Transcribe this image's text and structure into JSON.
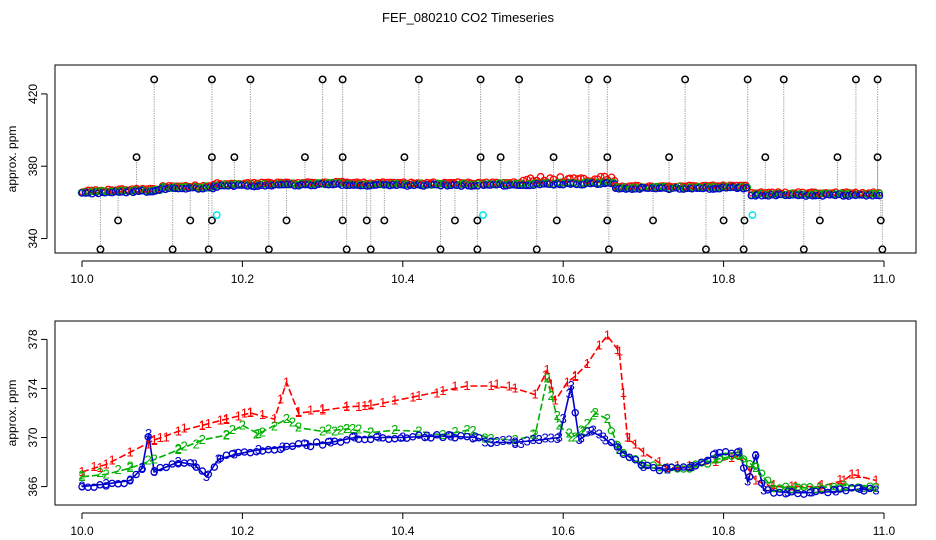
{
  "title": "FEF_080210  CO2 Timeseries",
  "colors": {
    "raw": "#000000",
    "s1": "#ff0000",
    "s2": "#00b000",
    "s3": "#0000cc",
    "cal": "#00e5ee",
    "drop": "#999999"
  },
  "chart_data": [
    {
      "type": "scatter",
      "ylabel": "approx. ppm",
      "xlim": [
        10.0,
        11.0
      ],
      "ylim": [
        332,
        436
      ],
      "x_ticks": [
        "10.0",
        "10.2",
        "10.4",
        "10.6",
        "10.8",
        "11.0"
      ],
      "y_ticks": [
        "340",
        "380",
        "420"
      ],
      "series": [
        {
          "key": "baseline",
          "segments": [
            {
              "x0": 10.0,
              "x1": 10.1,
              "y0": 365.0,
              "y1": 366.5
            },
            {
              "x0": 10.1,
              "x1": 10.165,
              "y0": 367.5,
              "y1": 368.0
            },
            {
              "x0": 10.165,
              "x1": 10.33,
              "y0": 369.0,
              "y1": 370.0
            },
            {
              "x0": 10.33,
              "x1": 10.495,
              "y0": 369.5,
              "y1": 369.5
            },
            {
              "x0": 10.5,
              "x1": 10.665,
              "y0": 369.5,
              "y1": 370.5
            },
            {
              "x0": 10.665,
              "x1": 10.83,
              "y0": 367.5,
              "y1": 368.0
            },
            {
              "x0": 10.835,
              "x1": 10.995,
              "y0": 364.0,
              "y1": 364.0
            }
          ]
        },
        {
          "key": "spikes_high",
          "x": [
            10.09,
            10.162,
            10.21,
            10.3,
            10.325,
            10.42,
            10.497,
            10.545,
            10.632,
            10.655,
            10.752,
            10.83,
            10.875,
            10.965,
            10.992
          ],
          "y": [
            428,
            428,
            428,
            428,
            428,
            428,
            428,
            428,
            428,
            428,
            428,
            428,
            428,
            428,
            428
          ]
        },
        {
          "key": "spikes_mid",
          "x": [
            10.068,
            10.162,
            10.19,
            10.278,
            10.325,
            10.402,
            10.497,
            10.522,
            10.588,
            10.655,
            10.732,
            10.852,
            10.942,
            10.992
          ],
          "y": [
            385,
            385,
            385,
            385,
            385,
            385,
            385,
            385,
            385,
            385,
            385,
            385,
            385,
            385
          ]
        },
        {
          "key": "spikes_low",
          "x": [
            10.045,
            10.135,
            10.162,
            10.255,
            10.325,
            10.355,
            10.377,
            10.465,
            10.493,
            10.592,
            10.655,
            10.712,
            10.8,
            10.826,
            10.92,
            10.996
          ],
          "y": [
            350,
            350,
            350,
            350,
            350,
            350,
            350,
            350,
            350,
            350,
            350,
            350,
            350,
            350,
            350,
            350
          ]
        },
        {
          "key": "spikes_min",
          "x": [
            10.023,
            10.113,
            10.158,
            10.233,
            10.33,
            10.36,
            10.447,
            10.493,
            10.567,
            10.657,
            10.778,
            10.825,
            10.9,
            10.998
          ],
          "y": [
            334,
            334,
            334,
            334,
            334,
            334,
            334,
            334,
            334,
            334,
            334,
            334,
            334,
            334
          ]
        },
        {
          "key": "calibration",
          "x": [
            10.168,
            10.5,
            10.836
          ],
          "y": [
            353,
            353,
            353
          ]
        }
      ]
    },
    {
      "type": "line",
      "ylabel": "approx. ppm",
      "xlim": [
        10.0,
        11.0
      ],
      "ylim": [
        364.5,
        379.5
      ],
      "x_ticks": [
        "10.0",
        "10.2",
        "10.4",
        "10.6",
        "10.8",
        "11.0"
      ],
      "y_ticks": [
        "366",
        "370",
        "374",
        "378"
      ],
      "series": [
        {
          "key": "s1",
          "marker": "1",
          "x": [
            10.0,
            10.03,
            10.06,
            10.09,
            10.12,
            10.15,
            10.18,
            10.21,
            10.24,
            10.255,
            10.27,
            10.3,
            10.33,
            10.36,
            10.39,
            10.42,
            10.45,
            10.48,
            10.51,
            10.54,
            10.565,
            10.58,
            10.59,
            10.605,
            10.615,
            10.63,
            10.645,
            10.655,
            10.67,
            10.68,
            10.7,
            10.73,
            10.76,
            10.79,
            10.82,
            10.84,
            10.86,
            10.89,
            10.92,
            10.95,
            10.96,
            10.99
          ],
          "y": [
            367.2,
            367.8,
            368.8,
            369.8,
            370.5,
            371.0,
            371.5,
            372.0,
            371.5,
            374.5,
            372.0,
            372.2,
            372.5,
            372.6,
            373.0,
            373.4,
            373.8,
            374.2,
            374.2,
            374.0,
            373.5,
            375.5,
            373.0,
            374.5,
            375.0,
            376.0,
            377.5,
            378.3,
            377.0,
            370.0,
            368.8,
            367.5,
            367.6,
            368.0,
            368.5,
            366.5,
            366.0,
            366.0,
            366.0,
            366.5,
            367.0,
            366.5
          ]
        },
        {
          "key": "s2",
          "marker": "2",
          "x": [
            10.0,
            10.03,
            10.06,
            10.09,
            10.12,
            10.15,
            10.18,
            10.2,
            10.22,
            10.255,
            10.27,
            10.3,
            10.33,
            10.36,
            10.39,
            10.42,
            10.45,
            10.48,
            10.51,
            10.54,
            10.565,
            10.58,
            10.595,
            10.61,
            10.625,
            10.64,
            10.655,
            10.67,
            10.7,
            10.73,
            10.76,
            10.79,
            10.82,
            10.84,
            10.86,
            10.89,
            10.92,
            10.95,
            10.99
          ],
          "y": [
            366.8,
            367.0,
            367.5,
            368.2,
            369.0,
            369.8,
            370.2,
            371.0,
            370.3,
            371.5,
            370.8,
            370.5,
            370.7,
            370.4,
            370.6,
            370.5,
            370.2,
            370.6,
            369.9,
            369.8,
            370.2,
            374.8,
            371.0,
            370.0,
            370.5,
            372.0,
            371.5,
            369.0,
            367.8,
            367.4,
            367.6,
            368.2,
            368.6,
            367.5,
            366.0,
            365.9,
            365.9,
            366.1,
            365.9
          ]
        },
        {
          "key": "s3",
          "marker": "3",
          "x": [
            10.0,
            10.03,
            10.06,
            10.075,
            10.083,
            10.09,
            10.12,
            10.14,
            10.155,
            10.17,
            10.19,
            10.22,
            10.25,
            10.28,
            10.31,
            10.34,
            10.37,
            10.4,
            10.43,
            10.46,
            10.49,
            10.51,
            10.54,
            10.57,
            10.595,
            10.61,
            10.62,
            10.635,
            10.65,
            10.67,
            10.7,
            10.73,
            10.76,
            10.79,
            10.82,
            10.83,
            10.84,
            10.85,
            10.88,
            10.91,
            10.94,
            10.97,
            10.99
          ],
          "y": [
            366.0,
            366.2,
            366.5,
            367.5,
            370.3,
            367.2,
            368.0,
            367.8,
            366.8,
            368.2,
            368.6,
            369.0,
            369.2,
            369.4,
            369.6,
            370.0,
            370.0,
            370.0,
            370.1,
            370.1,
            370.0,
            369.6,
            369.6,
            369.8,
            370.0,
            374.2,
            369.8,
            370.5,
            370.0,
            369.0,
            367.6,
            367.4,
            367.6,
            368.6,
            368.8,
            366.4,
            368.5,
            365.7,
            365.5,
            365.5,
            365.6,
            365.8,
            365.7
          ]
        }
      ]
    }
  ]
}
